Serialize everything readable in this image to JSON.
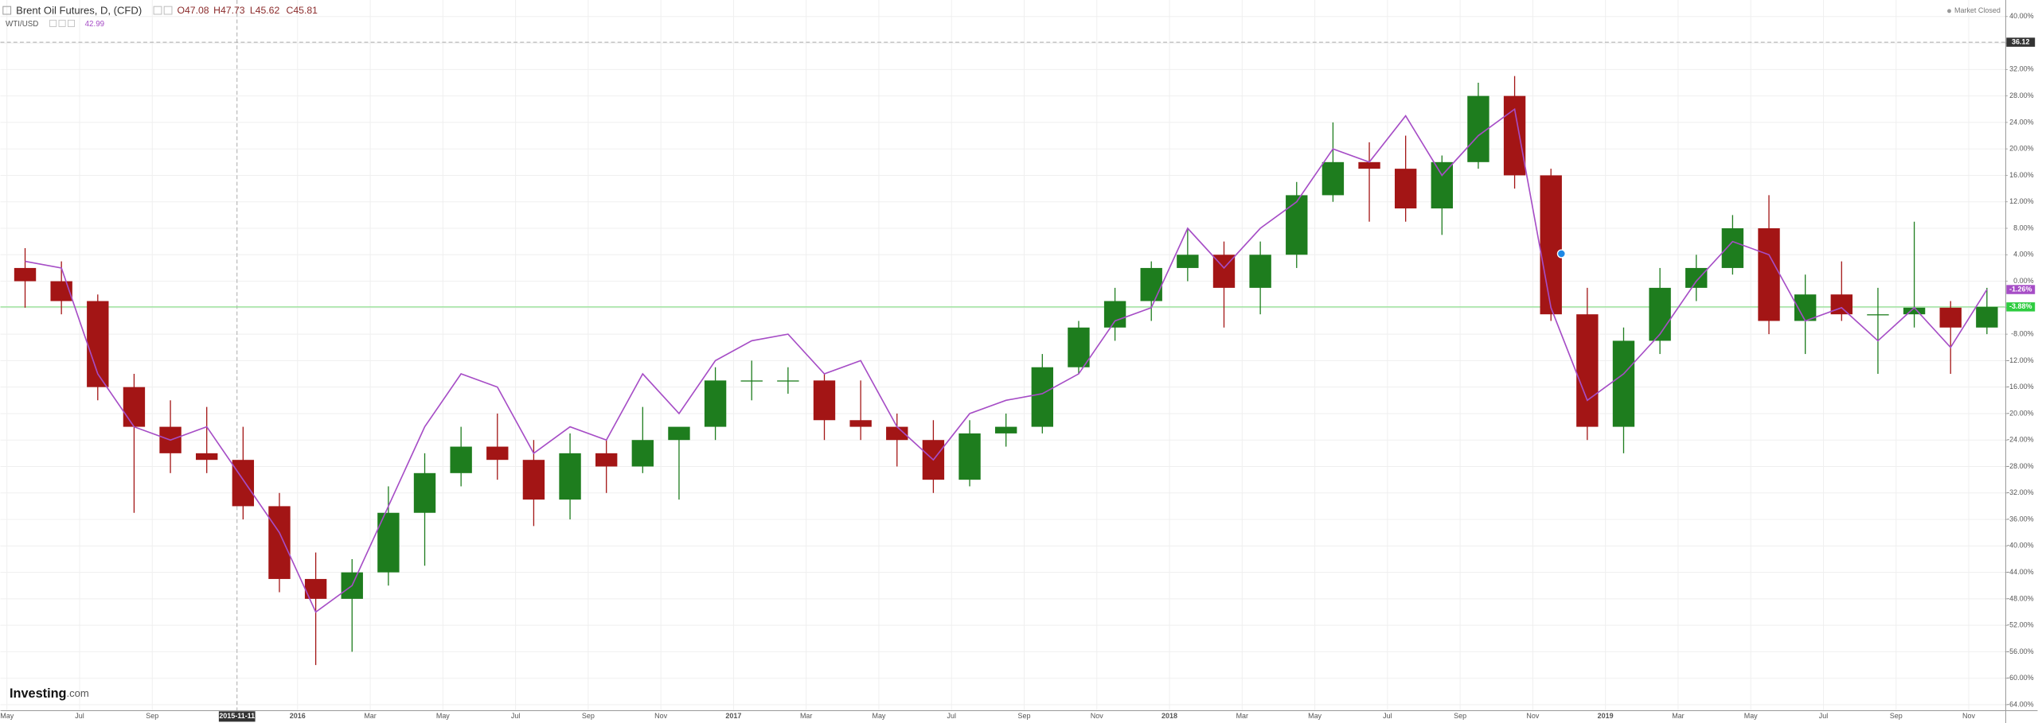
{
  "header": {
    "symbol": "Brent Oil Futures, D, (CFD)",
    "quote_labels": [
      "O47.08",
      "H47.73",
      "L45.62",
      "C45.81"
    ],
    "compare_symbol": "WTI/USD",
    "compare_quote": "42.99",
    "status": "Market Closed"
  },
  "logo": [
    "Investing",
    ".com"
  ],
  "chart_data": {
    "type": "candlestick",
    "x": [
      "2015-05",
      "2015-06",
      "2015-07",
      "2015-08",
      "2015-09",
      "2015-10",
      "2015-11",
      "2015-12",
      "2016-01",
      "2016-02",
      "2016-03",
      "2016-04",
      "2016-05",
      "2016-06",
      "2016-07",
      "2016-08",
      "2016-09",
      "2016-10",
      "2016-11",
      "2016-12",
      "2017-01",
      "2017-02",
      "2017-03",
      "2017-04",
      "2017-05",
      "2017-06",
      "2017-07",
      "2017-08",
      "2017-09",
      "2017-10",
      "2017-11",
      "2017-12",
      "2018-01",
      "2018-02",
      "2018-03",
      "2018-04",
      "2018-05",
      "2018-06",
      "2018-07",
      "2018-08",
      "2018-09",
      "2018-10",
      "2018-11",
      "2018-12",
      "2019-01",
      "2019-02",
      "2019-03",
      "2019-04",
      "2019-05",
      "2019-06",
      "2019-07",
      "2019-08",
      "2019-09",
      "2019-10",
      "2019-11"
    ],
    "series": [
      {
        "name": "Brent Oil Futures, D, (CFD)",
        "type": "candlestick",
        "up_color": "#1e7d1e",
        "down_color": "#a31515",
        "line_color": "#8fe08f",
        "open": [
          2,
          0,
          -3,
          -16,
          -22,
          -26,
          -27,
          -34,
          -45,
          -48,
          -44,
          -35,
          -29,
          -25,
          -27,
          -33,
          -26,
          -28,
          -24,
          -22,
          -15,
          -15,
          -15,
          -21,
          -22,
          -24,
          -30,
          -23,
          -22,
          -13,
          -7,
          -3,
          2,
          4,
          -1,
          4,
          13,
          18,
          17,
          11,
          18,
          28,
          16,
          -5,
          -22,
          -9,
          -1,
          2,
          8,
          -6,
          -2,
          -5,
          -5,
          -4,
          -7
        ],
        "high": [
          5,
          3,
          -2,
          -14,
          -18,
          -19,
          -22,
          -32,
          -41,
          -42,
          -31,
          -26,
          -22,
          -20,
          -24,
          -23,
          -24,
          -19,
          -23,
          -13,
          -12,
          -13,
          -14,
          -15,
          -20,
          -21,
          -21,
          -20,
          -11,
          -6,
          -1,
          3,
          8,
          6,
          6,
          15,
          24,
          21,
          22,
          19,
          30,
          31,
          17,
          -1,
          -7,
          2,
          4,
          10,
          13,
          1,
          3,
          -1,
          9,
          -3,
          -1
        ],
        "low": [
          -4,
          -5,
          -18,
          -35,
          -29,
          -29,
          -36,
          -47,
          -58,
          -56,
          -46,
          -43,
          -31,
          -30,
          -37,
          -36,
          -32,
          -29,
          -33,
          -24,
          -18,
          -17,
          -24,
          -24,
          -28,
          -32,
          -31,
          -25,
          -23,
          -14,
          -9,
          -6,
          0,
          -7,
          -5,
          2,
          12,
          9,
          9,
          7,
          17,
          14,
          -6,
          -24,
          -26,
          -11,
          -3,
          1,
          -8,
          -11,
          -6,
          -14,
          -7,
          -14,
          -8
        ],
        "close": [
          0,
          -3,
          -16,
          -22,
          -26,
          -27,
          -34,
          -45,
          -48,
          -44,
          -35,
          -29,
          -25,
          -27,
          -33,
          -26,
          -28,
          -24,
          -22,
          -15,
          -15,
          -15,
          -21,
          -22,
          -24,
          -30,
          -23,
          -22,
          -13,
          -7,
          -3,
          2,
          4,
          -1,
          4,
          13,
          18,
          17,
          11,
          18,
          28,
          16,
          -5,
          -22,
          -9,
          -1,
          2,
          8,
          -6,
          -2,
          -5,
          -5,
          -4,
          -7,
          -3.88
        ],
        "last_value_label": "-3.88%"
      },
      {
        "name": "WTI/USD",
        "type": "line",
        "color": "#a64dc6",
        "values": [
          3,
          2,
          -14,
          -22,
          -24,
          -22,
          -30,
          -38,
          -50,
          -46,
          -34,
          -22,
          -14,
          -16,
          -26,
          -22,
          -24,
          -14,
          -20,
          -12,
          -9,
          -8,
          -14,
          -12,
          -22,
          -27,
          -20,
          -18,
          -17,
          -14,
          -6,
          -4,
          8,
          2,
          8,
          12,
          20,
          18,
          25,
          16,
          22,
          26,
          -4,
          -18,
          -14,
          -8,
          0,
          6,
          4,
          -6,
          -4,
          -9,
          -4,
          -10,
          -1.26
        ],
        "last_value_label": "-1.26%"
      }
    ],
    "ylim": [
      -65,
      42.5
    ],
    "yticks": [
      {
        "value": 40,
        "label": "40.00%"
      },
      {
        "value": 36,
        "label": "36.00%"
      },
      {
        "value": 32,
        "label": "32.00%"
      },
      {
        "value": 28,
        "label": "28.00%"
      },
      {
        "value": 24,
        "label": "24.00%"
      },
      {
        "value": 20,
        "label": "20.00%"
      },
      {
        "value": 16,
        "label": "16.00%"
      },
      {
        "value": 12,
        "label": "12.00%"
      },
      {
        "value": 8,
        "label": "8.00%"
      },
      {
        "value": 4,
        "label": "4.00%"
      },
      {
        "value": 0,
        "label": "0.00%"
      },
      {
        "value": -4,
        "label": "-4.00%"
      },
      {
        "value": -8,
        "label": "-8.00%"
      },
      {
        "value": -12,
        "label": "-12.00%"
      },
      {
        "value": -16,
        "label": "-16.00%"
      },
      {
        "value": -20,
        "label": "-20.00%"
      },
      {
        "value": -24,
        "label": "-24.00%"
      },
      {
        "value": -28,
        "label": "-28.00%"
      },
      {
        "value": -32,
        "label": "-32.00%"
      },
      {
        "value": -36,
        "label": "-36.00%"
      },
      {
        "value": -40,
        "label": "-40.00%"
      },
      {
        "value": -44,
        "label": "-44.00%"
      },
      {
        "value": -48,
        "label": "-48.00%"
      },
      {
        "value": -52,
        "label": "-52.00%"
      },
      {
        "value": -56,
        "label": "-56.00%"
      },
      {
        "value": -60,
        "label": "-60.00%"
      },
      {
        "value": -64,
        "label": "-64.00%"
      }
    ],
    "xticks": [
      {
        "value": "2015-05",
        "label": "May"
      },
      {
        "value": "2015-07",
        "label": "Jul"
      },
      {
        "value": "2015-09",
        "label": "Sep"
      },
      {
        "value": "2016-01",
        "label": "2016"
      },
      {
        "value": "2016-03",
        "label": "Mar"
      },
      {
        "value": "2016-05",
        "label": "May"
      },
      {
        "value": "2016-07",
        "label": "Jul"
      },
      {
        "value": "2016-09",
        "label": "Sep"
      },
      {
        "value": "2016-11",
        "label": "Nov"
      },
      {
        "value": "2017-01",
        "label": "2017"
      },
      {
        "value": "2017-03",
        "label": "Mar"
      },
      {
        "value": "2017-05",
        "label": "May"
      },
      {
        "value": "2017-07",
        "label": "Jul"
      },
      {
        "value": "2017-09",
        "label": "Sep"
      },
      {
        "value": "2017-11",
        "label": "Nov"
      },
      {
        "value": "2018-01",
        "label": "2018"
      },
      {
        "value": "2018-03",
        "label": "Mar"
      },
      {
        "value": "2018-05",
        "label": "May"
      },
      {
        "value": "2018-07",
        "label": "Jul"
      },
      {
        "value": "2018-09",
        "label": "Sep"
      },
      {
        "value": "2018-11",
        "label": "Nov"
      },
      {
        "value": "2019-01",
        "label": "2019"
      },
      {
        "value": "2019-03",
        "label": "Mar"
      },
      {
        "value": "2019-05",
        "label": "May"
      },
      {
        "value": "2019-07",
        "label": "Jul"
      },
      {
        "value": "2019-09",
        "label": "Sep"
      },
      {
        "value": "2019-11",
        "label": "Nov"
      }
    ],
    "grid": true,
    "crosshair": {
      "x": "2015-11-11",
      "y": 36.12
    }
  }
}
